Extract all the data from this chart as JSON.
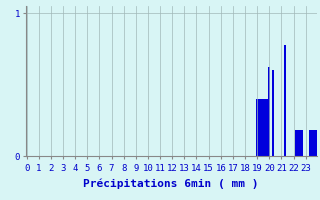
{
  "bar_color": "#0000dd",
  "background_color": "#d8f5f5",
  "grid_color": "#a0b8b8",
  "text_color": "#0000cc",
  "xlabel": "Précipitations 6min ( mm )",
  "ytick_labels": [
    "0",
    "1"
  ],
  "ytick_vals": [
    0,
    1
  ],
  "ylim": [
    0,
    1.05
  ],
  "n_bars": 144,
  "xlabel_fontsize": 8,
  "tick_fontsize": 6.5,
  "vals": [
    0,
    0,
    0,
    0,
    0,
    0,
    0,
    0,
    0,
    0,
    0,
    0,
    0,
    0,
    0,
    0,
    0,
    0,
    0,
    0,
    0,
    0,
    0,
    0,
    0,
    0,
    0,
    0,
    0,
    0,
    0,
    0,
    0,
    0,
    0,
    0,
    0,
    0,
    0,
    0,
    0,
    0,
    0,
    0,
    0,
    0,
    0,
    0,
    0,
    0,
    0,
    0,
    0,
    0,
    0,
    0,
    0,
    0,
    0,
    0,
    0,
    0,
    0,
    0,
    0,
    0,
    0,
    0,
    0,
    0,
    0,
    0,
    0,
    0,
    0,
    0,
    0,
    0,
    0,
    0,
    0,
    0,
    0,
    0,
    0,
    0,
    0,
    0,
    0,
    0,
    0,
    0,
    0,
    0,
    0,
    0,
    0,
    0,
    0,
    0,
    0,
    0,
    0,
    0,
    0,
    0,
    0,
    0,
    0,
    0,
    0,
    0,
    0,
    0,
    0.4,
    0.4,
    0.4,
    0.4,
    0.4,
    0.4,
    0.62,
    0,
    0.6,
    0,
    0,
    0,
    0,
    0,
    0.78,
    0,
    0,
    0,
    0,
    0.18,
    0.18,
    0.18,
    0.18,
    0,
    0,
    0,
    0.18,
    0.18,
    0.18,
    0.18
  ]
}
